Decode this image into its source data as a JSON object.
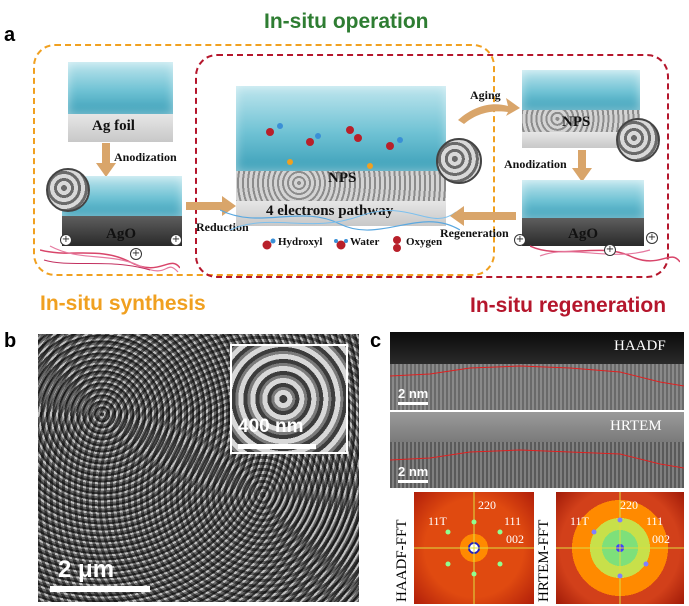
{
  "panel_a": {
    "letter": "a",
    "title_operation": "In-situ operation",
    "title_synthesis": "In-situ synthesis",
    "title_regeneration": "In-situ regeneration",
    "label_ag_foil": "Ag foil",
    "label_ago_left": "AgO",
    "label_ago_right": "AgO",
    "label_nps_center": "NPS",
    "label_nps_right": "NPS",
    "label_pathway": "4 electrons pathway",
    "arrow_anodization_left": "Anodization",
    "arrow_reduction": "Reduction",
    "arrow_aging": "Aging",
    "arrow_anodization_right": "Anodization",
    "arrow_regeneration": "Regeneration",
    "legend": [
      "Hydroxyl",
      "Water",
      "Oxygen"
    ],
    "colors": {
      "operation": "#2e7d32",
      "synthesis": "#f0a020",
      "regeneration": "#b5162c"
    }
  },
  "panel_b": {
    "letter": "b",
    "scale_main": "2 μm",
    "scale_inset": "400 nm"
  },
  "panel_c": {
    "letter": "c",
    "haadf_tag": "HAADF",
    "hrtem_tag": "HRTEM",
    "scale_haadf": "2 nm",
    "scale_hrtem": "2 nm",
    "fft_left_label": "HAADF-FFT",
    "fft_right_label": "HRTEM-FFT",
    "fft_spots_left": [
      "11T",
      "220",
      "111",
      "002"
    ],
    "fft_spots_right": [
      "11T",
      "220",
      "111",
      "002"
    ]
  }
}
